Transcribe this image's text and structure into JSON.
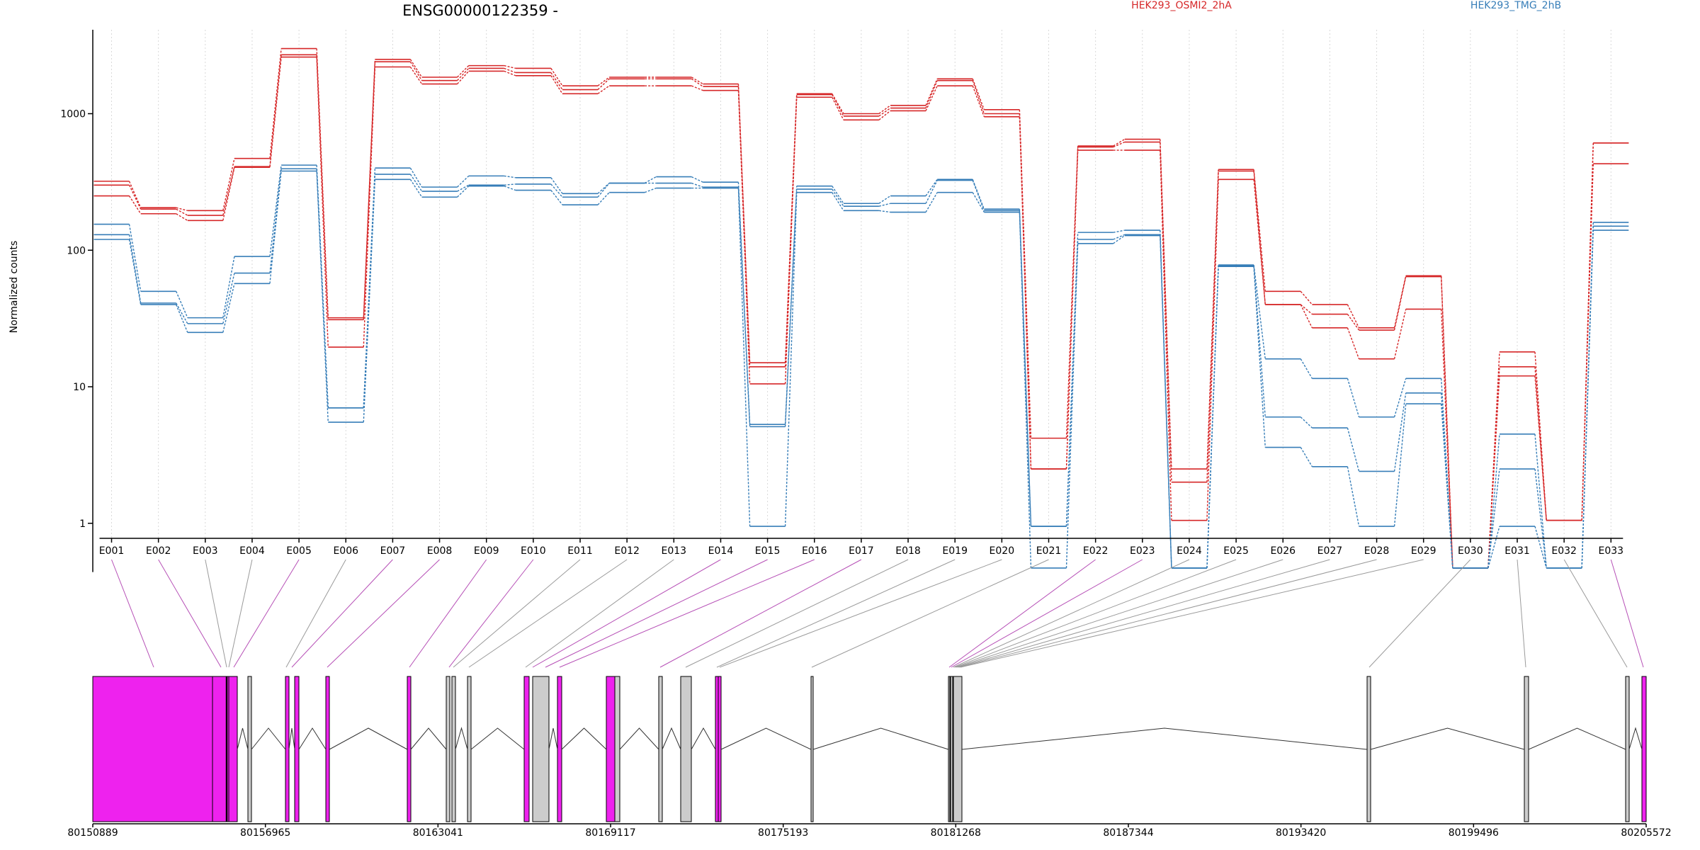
{
  "chart_data": {
    "type": "line",
    "title": "ENSG00000122359 -",
    "ylabel": "Normalized counts",
    "xlabel": "",
    "yscale": "log",
    "ylim": [
      0.45,
      4000
    ],
    "yticks": [
      1,
      10,
      100,
      1000
    ],
    "ytick_labels": [
      "1",
      "10",
      "100",
      "1000"
    ],
    "grid": "vertical dotted lines at each exon",
    "legend_position": "top",
    "colors": {
      "HEK293_OSMI2_2hA": "#d62728",
      "HEK293_TMG_2hB": "#377eb8",
      "exon_highlight": "#ee22ee",
      "exon_normal": "#cccccc",
      "connector_highlight": "#b64fb6",
      "connector_normal": "#9a9a9a"
    },
    "categories": [
      "E001",
      "E002",
      "E003",
      "E004",
      "E005",
      "E006",
      "E007",
      "E008",
      "E009",
      "E010",
      "E011",
      "E012",
      "E013",
      "E014",
      "E015",
      "E016",
      "E017",
      "E018",
      "E019",
      "E020",
      "E021",
      "E022",
      "E023",
      "E024",
      "E025",
      "E026",
      "E027",
      "E028",
      "E029",
      "E030",
      "E031",
      "E032",
      "E033"
    ],
    "series": [
      {
        "name": "HEK293_OSMI2_2hA",
        "group": "HEK293_OSMI2_2hA",
        "values": [
          320,
          205,
          195,
          470,
          3000,
          32,
          2500,
          1850,
          2250,
          2150,
          1600,
          1850,
          1850,
          1650,
          15,
          1400,
          1000,
          1150,
          1800,
          1070,
          4.2,
          580,
          650,
          2.5,
          390,
          50,
          40,
          27,
          65,
          0.47,
          18,
          1.05,
          610
        ]
      },
      {
        "name": "HEK293_OSMI2_2hA",
        "group": "HEK293_OSMI2_2hA",
        "values": [
          300,
          200,
          180,
          410,
          2700,
          31,
          2400,
          1750,
          2150,
          2000,
          1500,
          1800,
          1800,
          1580,
          14,
          1380,
          960,
          1100,
          1750,
          1000,
          2.5,
          570,
          620,
          2.0,
          380,
          40,
          34,
          26,
          64,
          0.47,
          14,
          1.05,
          610
        ]
      },
      {
        "name": "HEK293_OSMI2_2hA",
        "group": "HEK293_OSMI2_2hA",
        "values": [
          250,
          185,
          165,
          405,
          2600,
          19.5,
          2200,
          1650,
          2050,
          1900,
          1400,
          1600,
          1600,
          1480,
          10.5,
          1320,
          900,
          1050,
          1600,
          950,
          2.5,
          540,
          540,
          1.05,
          330,
          40,
          27,
          16,
          37,
          0.47,
          12,
          1.05,
          430
        ]
      },
      {
        "name": "HEK293_TMG_2hB",
        "group": "HEK293_TMG_2hB",
        "values": [
          155,
          50,
          32,
          90,
          420,
          7,
          400,
          290,
          350,
          340,
          260,
          310,
          345,
          315,
          5.3,
          295,
          220,
          250,
          330,
          200,
          0.95,
          135,
          140,
          0.47,
          78,
          16,
          11.5,
          6,
          11.5,
          0.47,
          4.5,
          0.47,
          160
        ]
      },
      {
        "name": "HEK293_TMG_2hB",
        "group": "HEK293_TMG_2hB",
        "values": [
          130,
          41,
          29,
          68,
          395,
          7,
          360,
          270,
          300,
          305,
          245,
          310,
          310,
          290,
          5.1,
          280,
          210,
          220,
          325,
          195,
          0.95,
          120,
          130,
          0.47,
          77,
          6,
          5,
          2.4,
          9,
          0.47,
          2.5,
          0.47,
          150
        ]
      },
      {
        "name": "HEK293_TMG_2hB",
        "group": "HEK293_TMG_2hB",
        "values": [
          120,
          40,
          25,
          57,
          380,
          5.5,
          330,
          245,
          295,
          275,
          215,
          265,
          285,
          285,
          0.95,
          265,
          195,
          190,
          265,
          190,
          0.47,
          112,
          128,
          0.47,
          76,
          3.6,
          2.6,
          0.95,
          7.5,
          0.47,
          0.95,
          0.47,
          140
        ]
      }
    ],
    "legend": [
      "HEK293_OSMI2_2hA",
      "HEK293_TMG_2hB"
    ],
    "genome_axis": {
      "range": [
        80150889,
        80205572
      ],
      "ticks": [
        80150889,
        80156965,
        80163041,
        80169117,
        80175193,
        80181268,
        80187344,
        80193420,
        80199496,
        80205572
      ],
      "tick_labels": [
        "80150889",
        "80156965",
        "80163041",
        "80169117",
        "80175193",
        "80181268",
        "80187344",
        "80193420",
        "80199496",
        "80205572"
      ]
    },
    "exon_highlighted": [
      true,
      true,
      false,
      false,
      true,
      false,
      true,
      true,
      true,
      true,
      false,
      false,
      false,
      true,
      true,
      true,
      true,
      false,
      false,
      false,
      false,
      true,
      true,
      false,
      false,
      false,
      false,
      false,
      false,
      false,
      false,
      false,
      true
    ]
  }
}
